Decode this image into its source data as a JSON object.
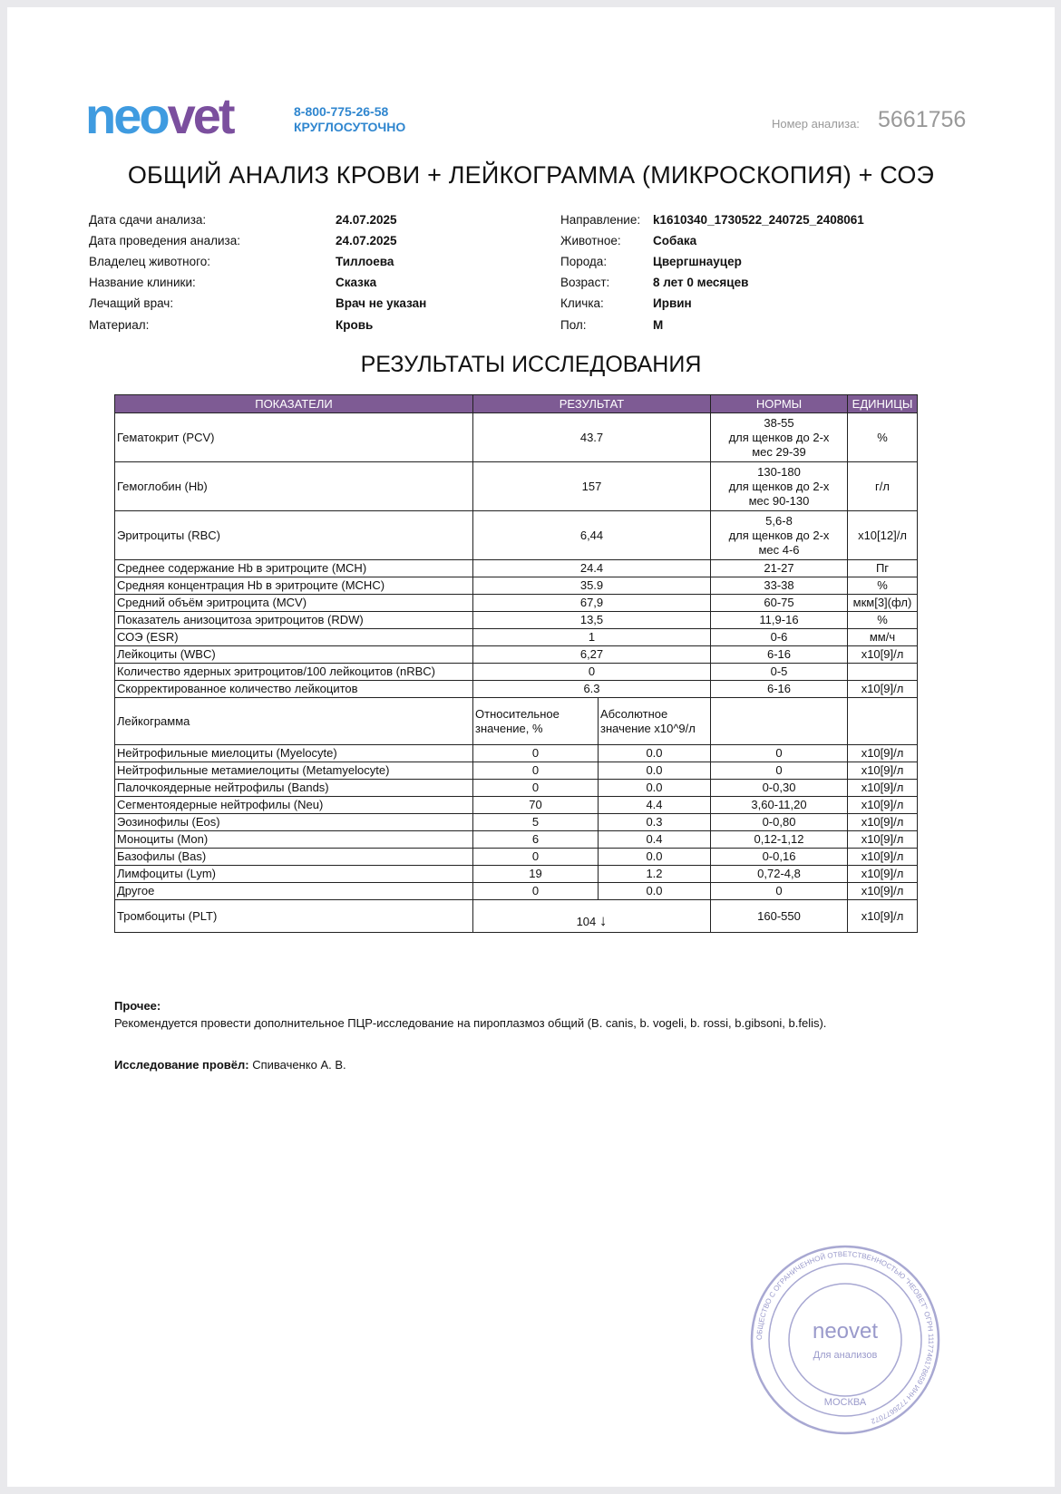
{
  "header": {
    "logo_text_a": "neo",
    "logo_text_b": "vet",
    "phone": "8-800-775-26-58",
    "phone_note": "КРУГЛОСУТОЧНО",
    "analysis_number_label": "Номер анализа:",
    "analysis_number": "5661756",
    "title": "ОБЩИЙ АНАЛИЗ КРОВИ + ЛЕЙКОГРАММА (МИКРОСКОПИЯ) + СОЭ"
  },
  "info_left": [
    {
      "label": "Дата сдачи анализа:",
      "value": "24.07.2025"
    },
    {
      "label": "Дата проведения анализа:",
      "value": "24.07.2025"
    },
    {
      "label": "Владелец животного:",
      "value": "Тиллоева"
    },
    {
      "label": "Название клиники:",
      "value": "Сказка"
    },
    {
      "label": "Лечащий врач:",
      "value": "Врач не указан"
    },
    {
      "label": "Материал:",
      "value": "Кровь"
    }
  ],
  "info_right": [
    {
      "label": "Направление:",
      "value": "k1610340_1730522_240725_2408061"
    },
    {
      "label": "Животное:",
      "value": "Собака"
    },
    {
      "label": "Порода:",
      "value": "Цвергшнауцер"
    },
    {
      "label": "Возраст:",
      "value": "8 лет 0 месяцев"
    },
    {
      "label": "Кличка:",
      "value": "Ирвин"
    },
    {
      "label": "Пол:",
      "value": "М"
    }
  ],
  "results_title": "РЕЗУЛЬТАТЫ ИССЛЕДОВАНИЯ",
  "table": {
    "columns": [
      "ПОКАЗАТЕЛИ",
      "РЕЗУЛЬТАТ",
      "НОРМЫ",
      "ЕДИНИЦЫ"
    ],
    "header_color": "#7e5b94",
    "rows": [
      {
        "type": "tall",
        "name": "Гематокрит (PCV)",
        "result": "43.7",
        "norm_lines": [
          "38-55",
          "для щенков до 2-х",
          "мес 29-39"
        ],
        "unit": "%"
      },
      {
        "type": "tall",
        "name": "Гемоглобин (Hb)",
        "result": "157",
        "norm_lines": [
          "130-180",
          "для щенков до 2-х",
          "мес 90-130"
        ],
        "unit": "г/л"
      },
      {
        "type": "tall",
        "name": "Эритроциты (RBC)",
        "result": "6,44",
        "norm_lines": [
          "5,6-8",
          "для щенков до 2-х",
          "мес 4-6"
        ],
        "unit": "x10[12]/л"
      },
      {
        "type": "single",
        "name": "Среднее содержание Hb в эритроците (MCH)",
        "result": "24.4",
        "norm": "21-27",
        "unit": "Пг"
      },
      {
        "type": "single",
        "name": "Средняя концентрация Hb в эритроците (MCHC)",
        "result": "35.9",
        "norm": "33-38",
        "unit": "%"
      },
      {
        "type": "single",
        "name": "Средний объём эритроцита (MCV)",
        "result": "67,9",
        "norm": "60-75",
        "unit": "мкм[3](фл)"
      },
      {
        "type": "single",
        "name": "Показатель анизоцитоза эритроцитов (RDW)",
        "result": "13,5",
        "norm": "11,9-16",
        "unit": "%"
      },
      {
        "type": "single",
        "name": "СОЭ (ESR)",
        "result": "1",
        "norm": "0-6",
        "unit": "мм/ч"
      },
      {
        "type": "single",
        "name": "Лейкоциты (WBC)",
        "result": "6,27",
        "norm": "6-16",
        "unit": "x10[9]/л"
      },
      {
        "type": "single",
        "name": "Количество ядерных эритроцитов/100 лейкоцитов (nRBC)",
        "result": "0",
        "norm": "0-5",
        "unit": ""
      },
      {
        "type": "single",
        "name": "Скорректированное количество лейкоцитов",
        "result": "6.3",
        "norm": "6-16",
        "unit": "x10[9]/л"
      },
      {
        "type": "hdr",
        "name": "Лейкограмма",
        "rel": "Относительное значение, %",
        "abs": "Абсолютное значение x10^9/л",
        "norm": "",
        "unit": ""
      },
      {
        "type": "split",
        "name": "Нейтрофильные миелоциты (Myelocyte)",
        "rel": "0",
        "abs": "0.0",
        "norm": "0",
        "unit": "x10[9]/л"
      },
      {
        "type": "split",
        "name": "Нейтрофильные метамиелоциты (Metamyelocyte)",
        "rel": "0",
        "abs": "0.0",
        "norm": "0",
        "unit": "x10[9]/л"
      },
      {
        "type": "split",
        "name": "Палочкоядерные нейтрофилы (Bands)",
        "rel": "0",
        "abs": "0.0",
        "norm": "0-0,30",
        "unit": "x10[9]/л"
      },
      {
        "type": "split",
        "name": "Сегментоядерные нейтрофилы (Neu)",
        "rel": "70",
        "abs": "4.4",
        "norm": "3,60-11,20",
        "unit": "x10[9]/л"
      },
      {
        "type": "split",
        "name": "Эозинофилы (Eos)",
        "rel": "5",
        "abs": "0.3",
        "norm": "0-0,80",
        "unit": "x10[9]/л"
      },
      {
        "type": "split",
        "name": "Моноциты (Mon)",
        "rel": "6",
        "abs": "0.4",
        "norm": "0,12-1,12",
        "unit": "x10[9]/л"
      },
      {
        "type": "split",
        "name": "Базофилы (Bas)",
        "rel": "0",
        "abs": "0.0",
        "norm": "0-0,16",
        "unit": "x10[9]/л"
      },
      {
        "type": "split",
        "name": "Лимфоциты (Lym)",
        "rel": "19",
        "abs": "1.2",
        "norm": "0,72-4,8",
        "unit": "x10[9]/л"
      },
      {
        "type": "split",
        "name": "Другое",
        "rel": "0",
        "abs": "0.0",
        "norm": "0",
        "unit": "x10[9]/л"
      },
      {
        "type": "plt",
        "name": "Тромбоциты (PLT)",
        "result": "104",
        "flag": "↓",
        "norm": "160-550",
        "unit": "x10[9]/л"
      }
    ]
  },
  "other": {
    "label": "Прочее:",
    "text": "Рекомендуется провести дополнительное ПЦР-исследование на пироплазмоз общий (B. canis, b. vogeli, b. rossi, b.gibsoni, b.felis)."
  },
  "signed": {
    "label": "Исследование провёл:",
    "name": "Спиваченко А. В."
  },
  "stamp": {
    "outer_text": "ОБЩЕСТВО С ОГРАНИЧЕННОЙ ОТВЕТСТВЕННОСТЬЮ \"НЕОВЕТ\" ОГРН 1117746178659 ИНН 7726677072",
    "logo": "neovet",
    "inner_text": "Для анализов",
    "city": "МОСКВА",
    "color": "#8f8fc4"
  }
}
